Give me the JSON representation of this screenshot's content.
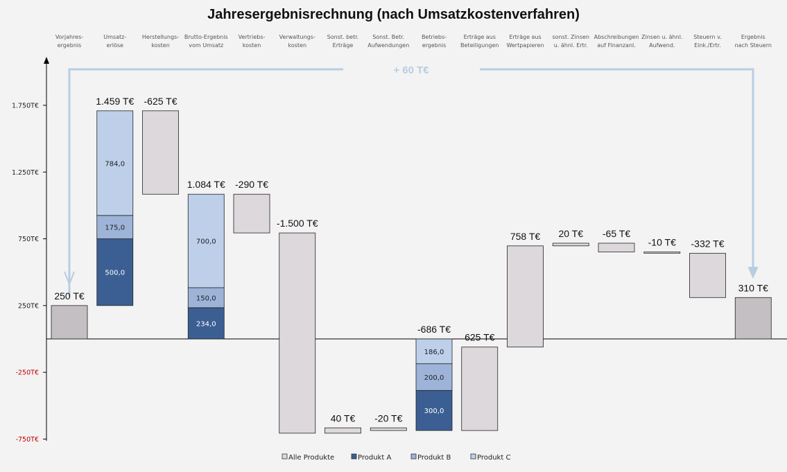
{
  "chart_data": {
    "type": "waterfall",
    "title": "Jahresergebnisrechnung (nach Umsatzkostenverfahren)",
    "annotation": "+ 60 T€",
    "yticks": [
      {
        "v": 1750,
        "label": "1.750T€"
      },
      {
        "v": 1250,
        "label": "1.250T€"
      },
      {
        "v": 750,
        "label": "750T€"
      },
      {
        "v": 250,
        "label": "250T€"
      },
      {
        "v": -250,
        "label": "-250T€"
      },
      {
        "v": -750,
        "label": "-750T€"
      }
    ],
    "ylim": [
      -750,
      1900
    ],
    "colors": {
      "total": "#c3bfc3",
      "Alle Produkte": "#dcd8dc",
      "Produkt A": "#3b5f93",
      "Produkt B": "#9db4d8",
      "Produkt C": "#bdcfe9",
      "negative_tick": "#c00000",
      "arrow": "#b8cce4"
    },
    "legend": [
      "Alle Produkte",
      "Produkt A",
      "Produkt B",
      "Produkt C"
    ],
    "bars": [
      {
        "category": "Vorjahres-\nergebnis",
        "label": "250 T€",
        "start": 0,
        "end": 250,
        "kind": "total"
      },
      {
        "category": "Umsatz-\nerlöse",
        "label": "1.459 T€",
        "start": 250,
        "stack": [
          {
            "series": "Produkt A",
            "value": 500,
            "label": "500,0"
          },
          {
            "series": "Produkt B",
            "value": 175,
            "label": "175,0"
          },
          {
            "series": "Produkt C",
            "value": 784,
            "label": "784,0"
          }
        ]
      },
      {
        "category": "Herstellungs-\nkosten",
        "label": "-625 T€",
        "start": 1709,
        "end": 1084
      },
      {
        "category": "Brutto-Ergebnis\nvom Umsatz",
        "label": "1.084 T€",
        "start": 0,
        "stack": [
          {
            "series": "Produkt A",
            "value": 234,
            "label": "234,0"
          },
          {
            "series": "Produkt B",
            "value": 150,
            "label": "150,0"
          },
          {
            "series": "Produkt C",
            "value": 700,
            "label": "700,0"
          }
        ]
      },
      {
        "category": "Vertriebs-\nkosten",
        "label": "-290 T€",
        "start": 1084,
        "end": 794
      },
      {
        "category": "Verwaltungs-\nkosten",
        "label": "-1.500 T€",
        "start": 794,
        "end": -706
      },
      {
        "category": "Sonst. betr.\nErträge",
        "label": "40 T€",
        "start": -706,
        "end": -666
      },
      {
        "category": "Sonst. Betr.\nAufwendungen",
        "label": "-20 T€",
        "start": -666,
        "end": -686
      },
      {
        "category": "Betriebs-\nergebnis",
        "label": "-686 T€",
        "start": 0,
        "stack": [
          {
            "series": "Produkt C",
            "value": -186,
            "label": "186,0"
          },
          {
            "series": "Produkt B",
            "value": -200,
            "label": "200,0"
          },
          {
            "series": "Produkt A",
            "value": -300,
            "label": "300,0"
          }
        ]
      },
      {
        "category": "Erträge aus\nBeteiligungen",
        "label": "625 T€",
        "start": -686,
        "end": -61
      },
      {
        "category": "Erträge aus\nWertpapieren",
        "label": "758 T€",
        "start": -61,
        "end": 697
      },
      {
        "category": "sonst. Zinsen\nu. ähnl. Ertr.",
        "label": "20 T€",
        "start": 697,
        "end": 717
      },
      {
        "category": "Abschreibungen\nauf Finanzanl.",
        "label": "-65 T€",
        "start": 717,
        "end": 652
      },
      {
        "category": "Zinsen u. ähnl.\nAufwend.",
        "label": "-10 T€",
        "start": 652,
        "end": 642
      },
      {
        "category": "Steuern v.\nEink./Ertr.",
        "label": "-332 T€",
        "start": 642,
        "end": 310
      },
      {
        "category": "Ergebnis\nnach Steuern",
        "label": "310 T€",
        "start": 0,
        "end": 310,
        "kind": "total"
      }
    ]
  }
}
